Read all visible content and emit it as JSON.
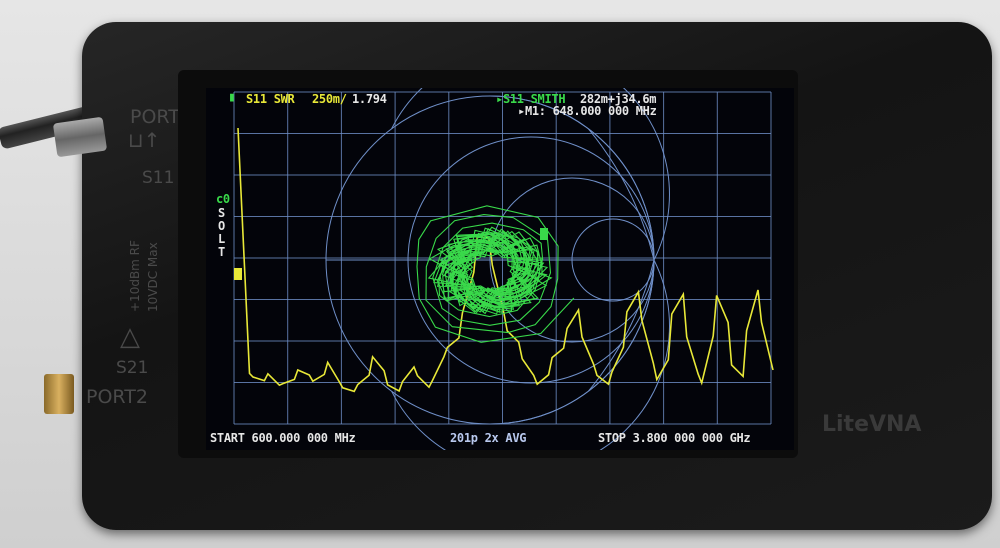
{
  "device": {
    "brand": "LiteVNA",
    "port1": "PORT1",
    "port2": "PORT2",
    "s11": "S11",
    "s21": "S21",
    "rating1": "+10dBm RF",
    "rating2": "10VDC Max"
  },
  "screen": {
    "trace1": {
      "label": "S11 SWR",
      "scale": "250m/",
      "value": "1.794",
      "color": "#e8e838"
    },
    "trace2": {
      "label": "S11 SMITH",
      "value": "282m+j34.6m",
      "color": "#39d94a"
    },
    "marker": "M1: 648.000 000 MHz",
    "marker_number": "1",
    "cal_slot": "c0",
    "cal_letters": [
      "S",
      "O",
      "L",
      "T"
    ],
    "start": "START  600.000 000 MHz",
    "points_avg": "201p  2x AVG",
    "stop": "STOP 3.800 000 000 GHz",
    "grid_color": "#6f8fc8",
    "battery_icon": "battery-icon"
  }
}
